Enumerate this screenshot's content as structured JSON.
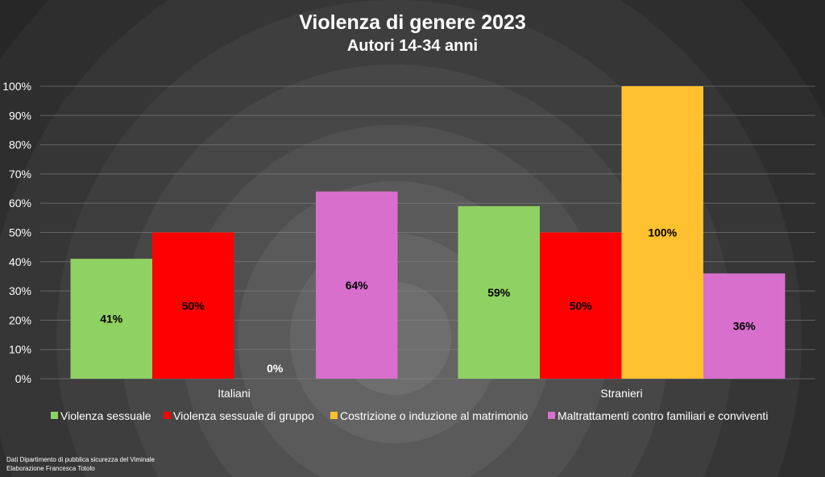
{
  "chart_data": {
    "type": "bar",
    "title": "Violenza di genere 2023",
    "subtitle": "Autori 14-34 anni",
    "categories": [
      "Italiani",
      "Stranieri"
    ],
    "ylim": [
      0,
      100
    ],
    "y_ticks": [
      "0%",
      "10%",
      "20%",
      "30%",
      "40%",
      "50%",
      "60%",
      "70%",
      "80%",
      "90%",
      "100%"
    ],
    "grid": true,
    "legend_position": "bottom",
    "series": [
      {
        "name": "Violenza sessuale",
        "color": "#8fd162",
        "values": [
          41,
          59
        ],
        "labels": [
          "41%",
          "59%"
        ]
      },
      {
        "name": "Violenza sessuale di gruppo",
        "color": "#ff0000",
        "values": [
          50,
          50
        ],
        "labels": [
          "50%",
          "50%"
        ]
      },
      {
        "name": "Costrizione o induzione al matrimonio",
        "color": "#ffc12f",
        "values": [
          0,
          100
        ],
        "labels": [
          "0%",
          "100%"
        ]
      },
      {
        "name": "Maltrattamenti contro familiari e conviventi",
        "color": "#d86fcd",
        "values": [
          64,
          36
        ],
        "labels": [
          "64%",
          "36%"
        ]
      }
    ]
  },
  "footer": {
    "line1": "Dati Dipartimento di pubblica sicurezza del Viminale",
    "line2": "Elaborazione Francesca Totolo"
  }
}
